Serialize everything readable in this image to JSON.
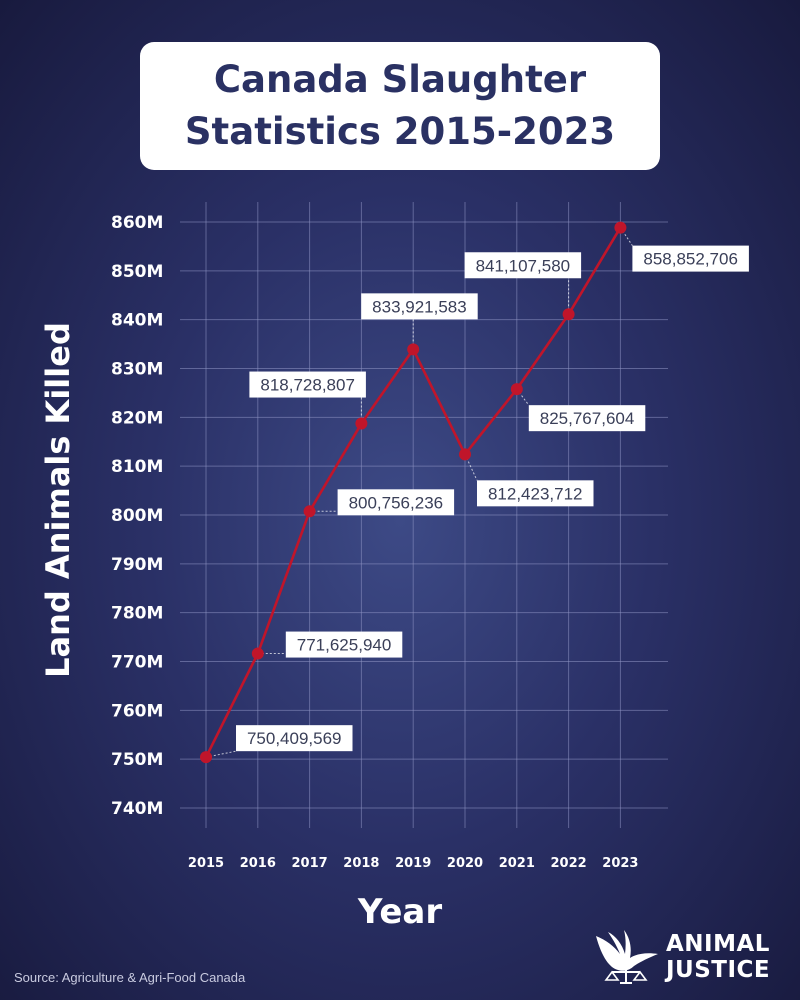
{
  "chart_data": {
    "type": "line",
    "title": [
      "Canada Slaughter",
      "Statistics 2015-2023"
    ],
    "ylabel": "Land Animals Killed",
    "xlabel": "Year",
    "x": [
      "2015",
      "2016",
      "2017",
      "2018",
      "2019",
      "2020",
      "2021",
      "2022",
      "2023"
    ],
    "y_ticks": [
      "740M",
      "750M",
      "760M",
      "770M",
      "780M",
      "790M",
      "800M",
      "810M",
      "820M",
      "830M",
      "840M",
      "850M",
      "860M"
    ],
    "ylim": [
      740000000,
      860000000
    ],
    "series": [
      {
        "values": [
          750409569,
          771625940,
          800756236,
          818728807,
          833921583,
          812423712,
          825767604,
          841107580,
          858852706
        ],
        "labels": [
          "750,409,569",
          "771,625,940",
          "800,756,236",
          "818,728,807",
          "833,921,583",
          "812,423,712",
          "825,767,604",
          "841,107,580",
          "858,852,706"
        ]
      }
    ],
    "grid": true
  },
  "source": "Source: Agriculture & Agri-Food Canada",
  "logo": {
    "line1": "ANIMAL",
    "line2": "JUSTICE"
  },
  "colors": {
    "line": "#c0152a",
    "title_text": "#2a3163"
  }
}
